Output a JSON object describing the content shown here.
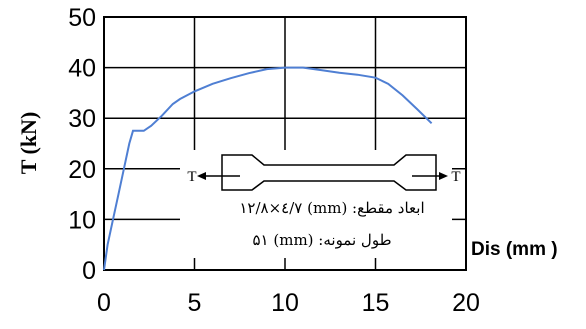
{
  "chart_data": {
    "type": "line",
    "xlabel": "Dis (mm )",
    "ylabel": "T (kN)",
    "xlim": [
      0,
      20
    ],
    "ylim": [
      0,
      50
    ],
    "x_ticks": [
      "0",
      "5",
      "10",
      "15",
      "20"
    ],
    "y_ticks": [
      "0",
      "10",
      "20",
      "30",
      "40",
      "50"
    ],
    "grid": "horizontal and vertical major gridlines",
    "series": [
      {
        "color": "#4f7fd3",
        "x": [
          0,
          0.2,
          0.5,
          0.8,
          1.1,
          1.4,
          1.6,
          2.2,
          2.6,
          3.2,
          3.8,
          4.2,
          5,
          6,
          7,
          8,
          9,
          10,
          11,
          12,
          13,
          14,
          15,
          15.7,
          16.5,
          17.3,
          18.1
        ],
        "y": [
          0,
          5,
          10,
          15,
          20,
          25,
          27.5,
          27.5,
          28.5,
          30.5,
          32.8,
          33.8,
          35.3,
          36.8,
          37.9,
          38.9,
          39.7,
          40,
          40,
          39.5,
          39,
          38.6,
          38,
          36.8,
          34.5,
          31.8,
          29
        ]
      }
    ],
    "annotations": {
      "force_left": "T",
      "force_right": "T",
      "section_line": "ابعاد مقطع: (mm) ۷/٤×۱۲/۸",
      "length_line": "طول نمونه: (mm) ۵۱"
    }
  }
}
